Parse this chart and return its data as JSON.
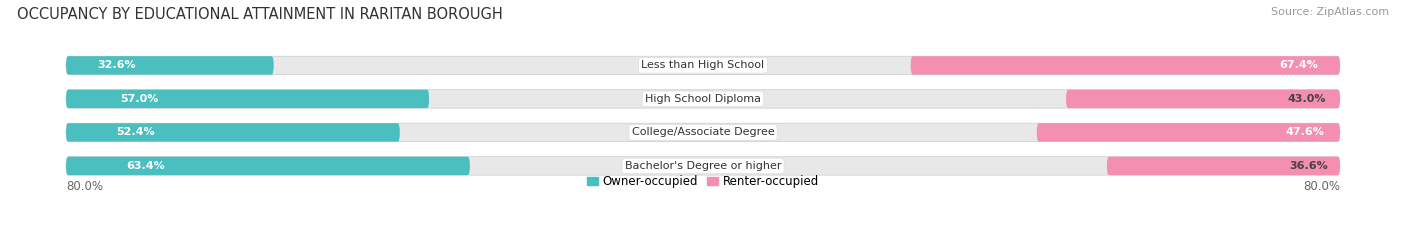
{
  "title": "OCCUPANCY BY EDUCATIONAL ATTAINMENT IN RARITAN BOROUGH",
  "source": "Source: ZipAtlas.com",
  "categories": [
    "Less than High School",
    "High School Diploma",
    "College/Associate Degree",
    "Bachelor's Degree or higher"
  ],
  "owner_pct": [
    32.6,
    57.0,
    52.4,
    63.4
  ],
  "renter_pct": [
    67.4,
    43.0,
    47.6,
    36.6
  ],
  "owner_color": "#4BBEC0",
  "renter_color": "#F48FB1",
  "axis_left_label": "80.0%",
  "axis_right_label": "80.0%",
  "legend_owner": "Owner-occupied",
  "legend_renter": "Renter-occupied",
  "bg_color": "#ffffff",
  "bar_bg_color": "#e8e8e8",
  "title_fontsize": 10.5,
  "source_fontsize": 8,
  "label_fontsize": 8,
  "category_fontsize": 8
}
